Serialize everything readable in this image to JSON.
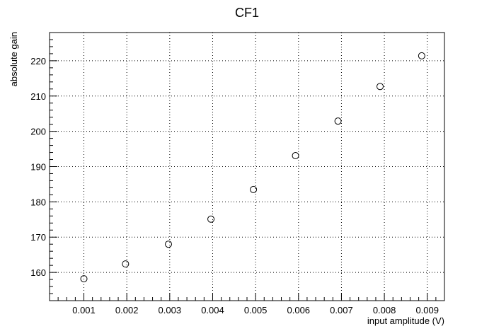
{
  "chart_data": {
    "type": "scatter",
    "title": "CF1",
    "xlabel": "input amplitude (V)",
    "ylabel": "absolute gain",
    "xlim": [
      0.0002,
      0.0094
    ],
    "ylim": [
      152,
      228
    ],
    "xticks": [
      0.001,
      0.002,
      0.003,
      0.004,
      0.005,
      0.006,
      0.007,
      0.008,
      0.009
    ],
    "xtick_labels": [
      "0.001",
      "0.002",
      "0.003",
      "0.004",
      "0.005",
      "0.006",
      "0.007",
      "0.008",
      "0.009"
    ],
    "yticks": [
      160,
      170,
      180,
      190,
      200,
      210,
      220
    ],
    "ytick_labels": [
      "160",
      "170",
      "180",
      "190",
      "200",
      "210",
      "220"
    ],
    "grid": true,
    "marker": "open-circle",
    "series": [
      {
        "x": [
          0.001,
          0.00197,
          0.00297,
          0.00396,
          0.00495,
          0.00593,
          0.00692,
          0.0079,
          0.00887
        ],
        "y": [
          158.2,
          162.4,
          168.0,
          175.1,
          183.5,
          193.1,
          202.9,
          212.7,
          221.4
        ]
      }
    ]
  }
}
